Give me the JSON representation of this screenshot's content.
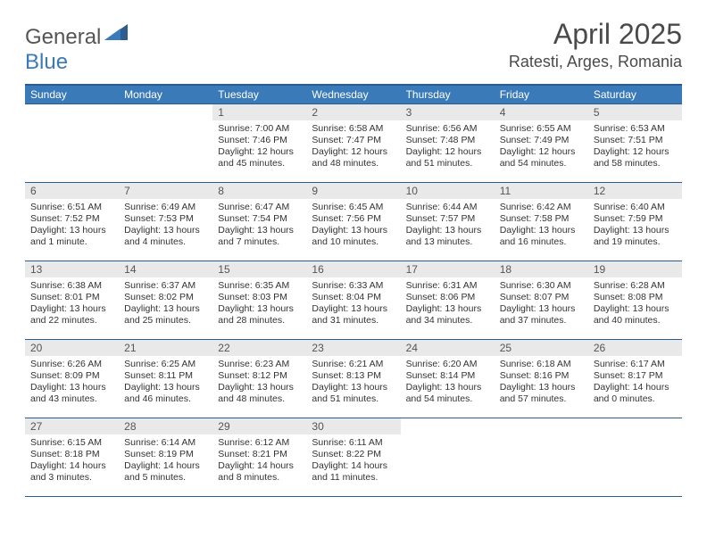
{
  "logo": {
    "text1": "General",
    "text2": "Blue"
  },
  "title": "April 2025",
  "location": "Ratesti, Arges, Romania",
  "colors": {
    "header_bg": "#3a7ab8",
    "header_border": "#2d5d8f",
    "daynum_bg": "#e9e9e9",
    "text": "#333333",
    "logo_gray": "#555555",
    "logo_blue": "#3a7ab8"
  },
  "day_names": [
    "Sunday",
    "Monday",
    "Tuesday",
    "Wednesday",
    "Thursday",
    "Friday",
    "Saturday"
  ],
  "blanks_before": 2,
  "days": [
    {
      "n": "1",
      "sr": "7:00 AM",
      "ss": "7:46 PM",
      "dl": "12 hours and 45 minutes."
    },
    {
      "n": "2",
      "sr": "6:58 AM",
      "ss": "7:47 PM",
      "dl": "12 hours and 48 minutes."
    },
    {
      "n": "3",
      "sr": "6:56 AM",
      "ss": "7:48 PM",
      "dl": "12 hours and 51 minutes."
    },
    {
      "n": "4",
      "sr": "6:55 AM",
      "ss": "7:49 PM",
      "dl": "12 hours and 54 minutes."
    },
    {
      "n": "5",
      "sr": "6:53 AM",
      "ss": "7:51 PM",
      "dl": "12 hours and 58 minutes."
    },
    {
      "n": "6",
      "sr": "6:51 AM",
      "ss": "7:52 PM",
      "dl": "13 hours and 1 minute."
    },
    {
      "n": "7",
      "sr": "6:49 AM",
      "ss": "7:53 PM",
      "dl": "13 hours and 4 minutes."
    },
    {
      "n": "8",
      "sr": "6:47 AM",
      "ss": "7:54 PM",
      "dl": "13 hours and 7 minutes."
    },
    {
      "n": "9",
      "sr": "6:45 AM",
      "ss": "7:56 PM",
      "dl": "13 hours and 10 minutes."
    },
    {
      "n": "10",
      "sr": "6:44 AM",
      "ss": "7:57 PM",
      "dl": "13 hours and 13 minutes."
    },
    {
      "n": "11",
      "sr": "6:42 AM",
      "ss": "7:58 PM",
      "dl": "13 hours and 16 minutes."
    },
    {
      "n": "12",
      "sr": "6:40 AM",
      "ss": "7:59 PM",
      "dl": "13 hours and 19 minutes."
    },
    {
      "n": "13",
      "sr": "6:38 AM",
      "ss": "8:01 PM",
      "dl": "13 hours and 22 minutes."
    },
    {
      "n": "14",
      "sr": "6:37 AM",
      "ss": "8:02 PM",
      "dl": "13 hours and 25 minutes."
    },
    {
      "n": "15",
      "sr": "6:35 AM",
      "ss": "8:03 PM",
      "dl": "13 hours and 28 minutes."
    },
    {
      "n": "16",
      "sr": "6:33 AM",
      "ss": "8:04 PM",
      "dl": "13 hours and 31 minutes."
    },
    {
      "n": "17",
      "sr": "6:31 AM",
      "ss": "8:06 PM",
      "dl": "13 hours and 34 minutes."
    },
    {
      "n": "18",
      "sr": "6:30 AM",
      "ss": "8:07 PM",
      "dl": "13 hours and 37 minutes."
    },
    {
      "n": "19",
      "sr": "6:28 AM",
      "ss": "8:08 PM",
      "dl": "13 hours and 40 minutes."
    },
    {
      "n": "20",
      "sr": "6:26 AM",
      "ss": "8:09 PM",
      "dl": "13 hours and 43 minutes."
    },
    {
      "n": "21",
      "sr": "6:25 AM",
      "ss": "8:11 PM",
      "dl": "13 hours and 46 minutes."
    },
    {
      "n": "22",
      "sr": "6:23 AM",
      "ss": "8:12 PM",
      "dl": "13 hours and 48 minutes."
    },
    {
      "n": "23",
      "sr": "6:21 AM",
      "ss": "8:13 PM",
      "dl": "13 hours and 51 minutes."
    },
    {
      "n": "24",
      "sr": "6:20 AM",
      "ss": "8:14 PM",
      "dl": "13 hours and 54 minutes."
    },
    {
      "n": "25",
      "sr": "6:18 AM",
      "ss": "8:16 PM",
      "dl": "13 hours and 57 minutes."
    },
    {
      "n": "26",
      "sr": "6:17 AM",
      "ss": "8:17 PM",
      "dl": "14 hours and 0 minutes."
    },
    {
      "n": "27",
      "sr": "6:15 AM",
      "ss": "8:18 PM",
      "dl": "14 hours and 3 minutes."
    },
    {
      "n": "28",
      "sr": "6:14 AM",
      "ss": "8:19 PM",
      "dl": "14 hours and 5 minutes."
    },
    {
      "n": "29",
      "sr": "6:12 AM",
      "ss": "8:21 PM",
      "dl": "14 hours and 8 minutes."
    },
    {
      "n": "30",
      "sr": "6:11 AM",
      "ss": "8:22 PM",
      "dl": "14 hours and 11 minutes."
    }
  ],
  "labels": {
    "sunrise": "Sunrise:",
    "sunset": "Sunset:",
    "daylight": "Daylight:"
  }
}
